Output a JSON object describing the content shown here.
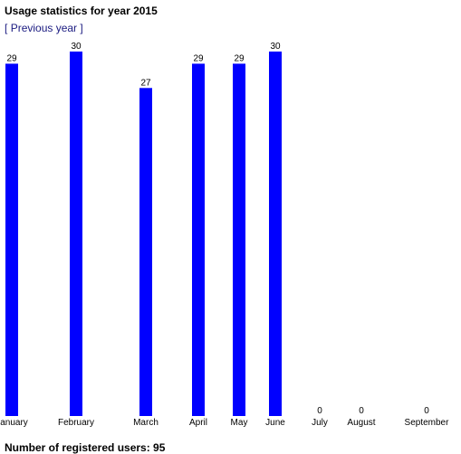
{
  "header": {
    "title": "Usage statistics for year 2015",
    "nav_open": "[",
    "nav_link": "Previous year",
    "nav_close": "]"
  },
  "footer": {
    "registered_users": "Number of registered users: 95"
  },
  "colors": {
    "bar": "#0000ff"
  },
  "chart_data": {
    "type": "bar",
    "title": "",
    "xlabel": "",
    "ylabel": "",
    "categories": [
      "January",
      "February",
      "March",
      "April",
      "May",
      "June",
      "July",
      "August",
      "September"
    ],
    "values": [
      29,
      30,
      27,
      29,
      29,
      30,
      0,
      0,
      0
    ],
    "ylim": [
      0,
      30
    ],
    "grid": false,
    "legend": "none"
  }
}
